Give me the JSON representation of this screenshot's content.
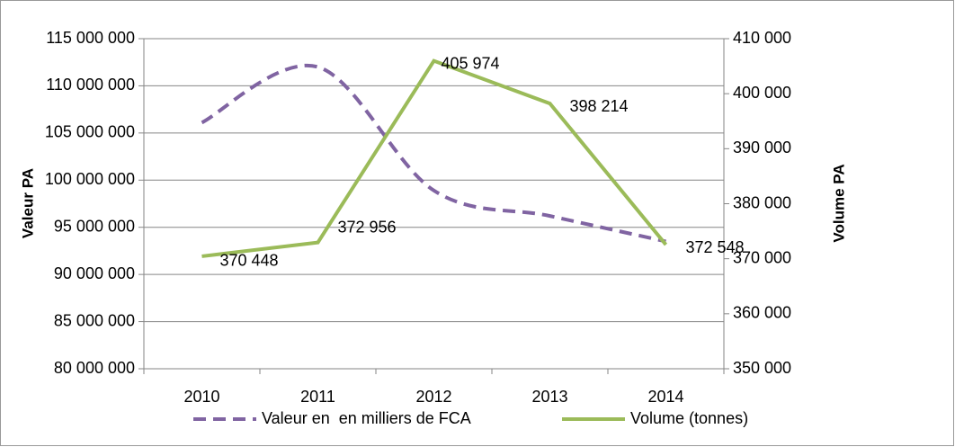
{
  "chart_data": {
    "type": "line",
    "categories": [
      "2010",
      "2011",
      "2012",
      "2013",
      "2014"
    ],
    "y_label": "Valeur PA",
    "y2_label": "Volume PA",
    "ylim": [
      80000000,
      115000000
    ],
    "yticks": [
      {
        "value": 80000000,
        "label": "80 000 000"
      },
      {
        "value": 85000000,
        "label": "85 000 000"
      },
      {
        "value": 90000000,
        "label": "90 000 000"
      },
      {
        "value": 95000000,
        "label": "95 000 000"
      },
      {
        "value": 100000000,
        "label": "100 000 000"
      },
      {
        "value": 105000000,
        "label": "105 000 000"
      },
      {
        "value": 110000000,
        "label": "110 000 000"
      },
      {
        "value": 115000000,
        "label": "115 000 000"
      }
    ],
    "y2lim": [
      350000,
      410000
    ],
    "y2ticks": [
      {
        "value": 350000,
        "label": "350 000"
      },
      {
        "value": 360000,
        "label": "360 000"
      },
      {
        "value": 370000,
        "label": "370 000"
      },
      {
        "value": 380000,
        "label": "380 000"
      },
      {
        "value": 390000,
        "label": "390 000"
      },
      {
        "value": 400000,
        "label": "400 000"
      },
      {
        "value": 410000,
        "label": "410 000"
      }
    ],
    "grid": true,
    "legend": "bottom",
    "series": [
      {
        "name": "Valeur en  en milliers de FCA",
        "color": "#8064a2",
        "dashed": true,
        "smooth": true,
        "values": [
          106100000,
          112000000,
          98900000,
          96200000,
          93500000
        ]
      },
      {
        "name": "Volume (tonnes)",
        "color": "#9bbb59",
        "axis": "y2",
        "values": [
          370448,
          372956,
          405974,
          398214,
          372548
        ],
        "value_labels": [
          "370 448",
          "372 956",
          "405 974",
          "398 214",
          "372 548"
        ]
      }
    ]
  }
}
